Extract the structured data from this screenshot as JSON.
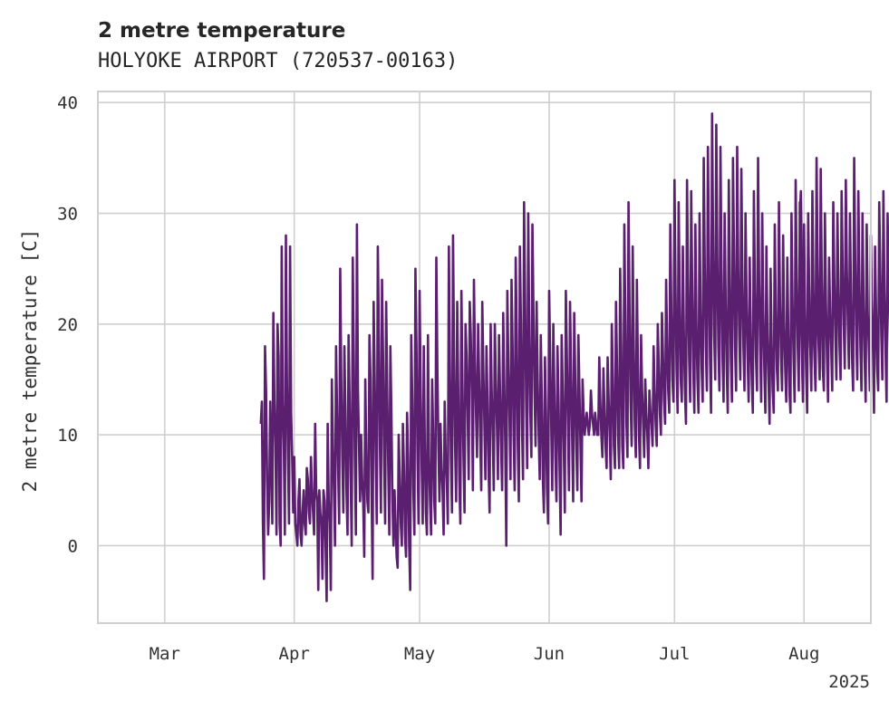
{
  "chart_data": {
    "type": "line",
    "title": "2 metre temperature",
    "subtitle": "HOLYOKE AIRPORT (720537-00163)",
    "xlabel": "",
    "ylabel": "2 metre temperature [C]",
    "x_range": [
      "2025-02-13",
      "2025-08-17"
    ],
    "y_range": [
      -7,
      41
    ],
    "y_ticks": [
      0,
      10,
      20,
      30,
      40
    ],
    "x_ticks": [
      {
        "date": "2025-03-01",
        "label": "Mar"
      },
      {
        "date": "2025-04-01",
        "label": "Apr"
      },
      {
        "date": "2025-05-01",
        "label": "May"
      },
      {
        "date": "2025-06-01",
        "label": "Jun"
      },
      {
        "date": "2025-07-01",
        "label": "Jul"
      },
      {
        "date": "2025-08-01",
        "label": "Aug"
      }
    ],
    "year_label": "2025",
    "grid": true,
    "line_color": "#5a1f6e",
    "series": [
      {
        "segments": [
          {
            "start": "2025-03-24",
            "step_hours": 6,
            "values": [
              11,
              13,
              2,
              -3,
              18,
              14,
              6,
              1,
              4,
              13,
              8,
              2,
              21,
              13,
              9,
              1,
              20,
              17,
              2,
              0,
              27,
              13,
              9,
              1,
              28,
              15,
              8,
              2,
              27,
              12,
              8,
              3,
              8,
              2,
              1,
              0,
              4,
              6,
              1,
              0,
              3,
              5,
              2,
              1,
              7,
              6,
              3,
              2,
              8,
              5,
              3,
              1,
              11,
              5,
              4,
              -4,
              5,
              3,
              2,
              -3,
              5,
              4,
              0,
              -5,
              11,
              4,
              2,
              -4,
              15,
              9,
              5,
              0,
              18,
              12,
              7,
              2,
              25,
              15,
              8,
              3,
              18,
              12,
              5,
              1,
              19,
              13,
              6,
              0,
              26,
              17,
              8,
              1,
              29,
              14,
              9,
              4,
              10,
              6,
              4,
              -1,
              15,
              8,
              4,
              3,
              19,
              15,
              5,
              -3,
              22,
              15,
              8,
              2,
              27,
              19,
              9,
              3,
              24,
              17,
              8,
              2,
              22,
              14,
              7,
              1,
              18,
              12,
              4,
              0,
              5,
              2,
              -1,
              -2,
              10,
              6,
              2,
              0,
              11,
              7,
              1,
              -1,
              12,
              8,
              0,
              -4,
              19,
              13,
              5,
              1,
              25,
              18,
              8,
              2,
              23,
              14,
              7,
              2,
              18,
              9,
              3,
              1,
              19,
              8,
              4,
              1,
              15,
              10,
              4,
              2,
              26,
              16,
              9,
              4,
              11,
              7,
              5,
              1,
              13,
              8,
              6,
              2,
              27,
              16,
              8,
              3,
              28,
              17,
              9,
              4,
              22,
              14,
              6,
              2,
              23,
              15,
              8,
              3,
              20,
              17,
              12,
              6,
              22,
              19,
              14,
              5,
              24,
              17,
              12,
              8,
              20,
              15,
              10,
              5,
              22,
              16,
              11,
              6,
              18,
              13,
              7,
              3,
              20,
              14,
              10,
              5,
              20,
              15,
              11,
              6,
              19,
              14,
              9,
              5,
              21,
              15,
              9,
              0,
              23,
              16,
              12,
              6,
              24,
              18,
              10,
              5,
              26,
              19,
              9,
              4,
              27,
              20,
              11,
              6,
              31,
              22,
              13,
              7,
              30,
              19,
              12,
              8,
              29,
              21,
              14,
              9,
              22,
              15,
              10,
              6,
              19,
              13,
              6,
              3,
              17,
              12,
              5,
              2,
              23,
              17,
              11,
              5,
              20,
              14,
              8,
              4,
              18,
              13,
              7,
              1,
              19,
              14,
              9,
              3,
              23,
              17,
              11,
              5,
              22,
              16,
              10,
              4,
              21,
              15,
              9,
              5,
              19,
              14,
              9,
              4,
              15,
              12,
              10,
              11,
              12,
              11,
              10,
              11,
              14,
              12,
              11,
              10,
              12,
              11,
              10,
              10,
              17,
              13,
              10,
              8,
              16,
              12,
              9,
              7,
              17,
              13,
              10,
              6,
              20,
              15,
              9,
              7,
              22,
              16,
              10,
              7,
              25,
              18,
              9,
              7,
              29,
              20,
              11,
              8,
              31,
              21,
              13,
              9,
              27,
              18,
              11,
              8,
              24,
              16,
              10,
              7,
              19,
              14,
              11,
              8,
              15,
              12,
              10,
              7,
              14,
              12,
              11,
              9,
              18,
              14,
              11,
              9,
              20,
              16,
              12,
              10,
              21,
              17,
              13,
              11,
              24,
              18,
              14,
              12,
              29,
              21,
              15,
              13,
              33,
              23,
              16,
              12,
              31,
              22,
              15,
              13,
              27,
              19,
              14,
              11,
              33,
              24,
              17,
              13,
              32,
              23,
              16,
              12,
              29,
              20,
              15,
              12,
              30,
              21,
              16,
              13,
              35,
              25,
              18,
              14,
              36,
              26,
              17,
              12,
              39,
              27,
              19,
              15,
              38,
              26,
              18,
              14,
              36,
              25,
              17,
              13,
              30,
              22,
              16,
              12,
              33,
              24,
              17,
              13,
              35,
              26,
              18,
              14,
              36,
              25,
              19,
              15,
              34,
              24,
              18,
              14,
              30,
              22,
              17,
              13,
              26,
              19,
              15,
              12,
              32,
              23,
              17,
              14,
              35,
              24,
              18,
              13,
              30,
              21,
              16,
              12,
              27,
              19,
              15,
              11,
              25,
              18,
              14,
              12,
              29,
              21,
              16,
              14,
              31,
              22,
              17,
              14,
              28,
              20,
              16,
              13,
              26,
              19,
              14,
              12,
              30,
              22,
              17,
              13,
              33,
              24,
              18,
              14,
              31,
              22,
              17,
              13,
              29,
              21,
              16,
              12,
              30,
              22,
              18,
              14,
              32,
              23,
              18,
              15,
              35,
              25,
              19,
              16,
              34,
              24,
              19,
              16
            ]
          },
          {
            "start": "2025-07-31",
            "step_hours": 6,
            "values": [
              30,
              32,
              25,
              18,
              26,
              20,
              17,
              15,
              28,
              22,
              18,
              16,
              24,
              20,
              17,
              14,
              28,
              21,
              18,
              15,
              29,
              22,
              16,
              14,
              30,
              22,
              17,
              13,
              26,
              21,
              18,
              14,
              31,
              24,
              19,
              15,
              30,
              23,
              18,
              15,
              32,
              25,
              20,
              16,
              33,
              25,
              20,
              16,
              30,
              22,
              17,
              14,
              35,
              26,
              19,
              15,
              32,
              24,
              18,
              14,
              30,
              22,
              17,
              13,
              29,
              21,
              18,
              14,
              28,
              22,
              18,
              12,
              27,
              21,
              16,
              14,
              31,
              25,
              19,
              15,
              32,
              23,
              18,
              13,
              30,
              24,
              20,
              15,
              35,
              27,
              21,
              16,
              33,
              26,
              22,
              17,
              27,
              23,
              22,
              22
            ]
          }
        ]
      }
    ]
  }
}
